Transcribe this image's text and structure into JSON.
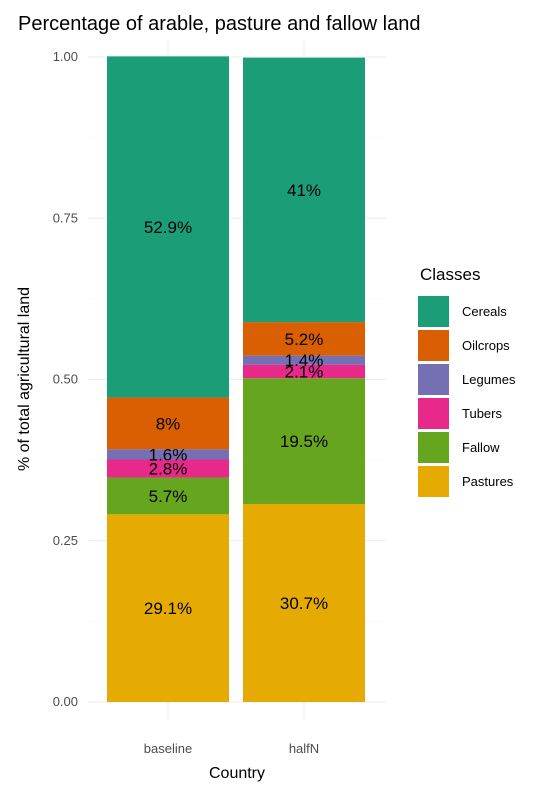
{
  "chart_data": {
    "type": "bar",
    "stacked": true,
    "title": "Percentage of arable, pasture and fallow land",
    "xlabel": "Country",
    "ylabel": "% of total agricultural land",
    "categories": [
      "baseline",
      "halfN"
    ],
    "ylim": [
      0,
      1
    ],
    "yticks": [
      "0.00",
      "0.25",
      "0.50",
      "0.75",
      "1.00"
    ],
    "legend_title": "Classes",
    "legend_position": "right",
    "grid": true,
    "series": [
      {
        "name": "Pastures",
        "color": "#E6AB02",
        "values": [
          0.291,
          0.307
        ],
        "labels": [
          "29.1%",
          "30.7%"
        ]
      },
      {
        "name": "Fallow",
        "color": "#66A61E",
        "values": [
          0.057,
          0.195
        ],
        "labels": [
          "5.7%",
          "19.5%"
        ]
      },
      {
        "name": "Tubers",
        "color": "#E7298A",
        "values": [
          0.028,
          0.021
        ],
        "labels": [
          "2.8%",
          "2.1%"
        ]
      },
      {
        "name": "Legumes",
        "color": "#7570B3",
        "values": [
          0.016,
          0.014
        ],
        "labels": [
          "1.6%",
          "1.4%"
        ]
      },
      {
        "name": "Oilcrops",
        "color": "#D95F02",
        "values": [
          0.08,
          0.052
        ],
        "labels": [
          "8%",
          "5.2%"
        ]
      },
      {
        "name": "Cereals",
        "color": "#1B9E77",
        "values": [
          0.529,
          0.41
        ],
        "labels": [
          "52.9%",
          "41%"
        ]
      }
    ],
    "legend_order": [
      "Cereals",
      "Oilcrops",
      "Legumes",
      "Tubers",
      "Fallow",
      "Pastures"
    ]
  }
}
